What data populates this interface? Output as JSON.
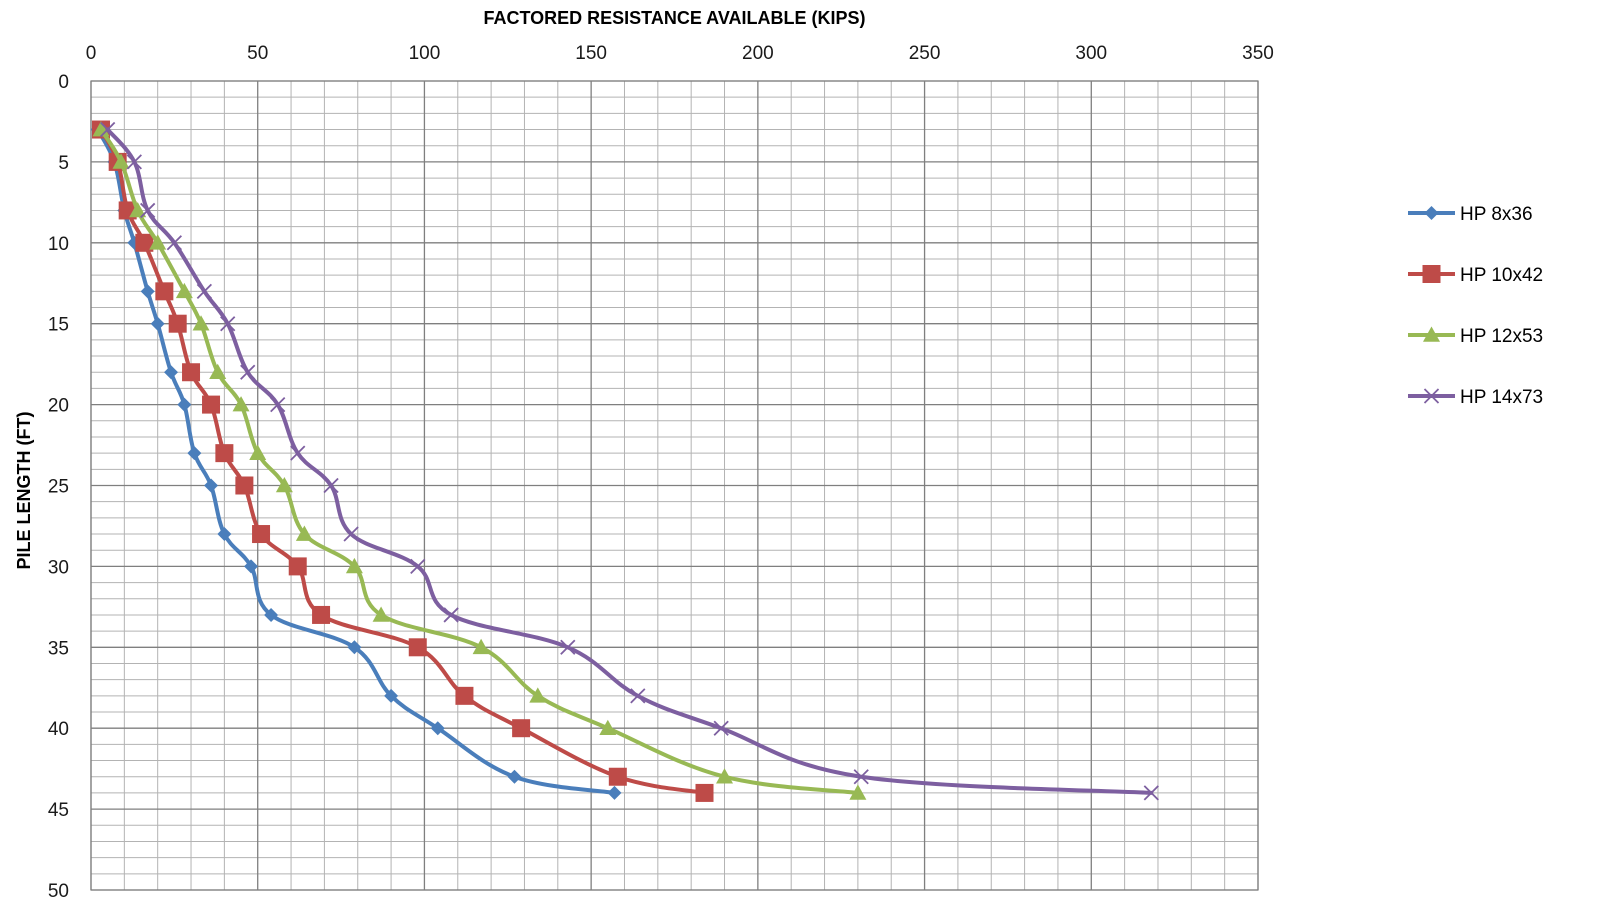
{
  "chart_data": {
    "type": "line",
    "title": "",
    "xlabel": "FACTORED RESISTANCE AVAILABLE (KIPS)",
    "ylabel": "PILE LENGTH (FT)",
    "x_axis_position": "top",
    "y_axis_inverted": true,
    "xlim": [
      0,
      350
    ],
    "ylim": [
      0,
      50
    ],
    "x_major_step": 50,
    "x_minor_step": 10,
    "y_major_step": 5,
    "y_minor_step": 1,
    "x_ticks": [
      "0",
      "50",
      "100",
      "150",
      "200",
      "250",
      "300",
      "350"
    ],
    "y_ticks": [
      "0",
      "5",
      "10",
      "15",
      "20",
      "25",
      "30",
      "35",
      "40",
      "45",
      "50"
    ],
    "grid": "major and minor",
    "legend_position": "right",
    "series": [
      {
        "name": "HP 8x36",
        "color": "#4a7ebb",
        "marker": "diamond",
        "points": [
          [
            2,
            3
          ],
          [
            7,
            5
          ],
          [
            10,
            8
          ],
          [
            13,
            10
          ],
          [
            17,
            13
          ],
          [
            20,
            15
          ],
          [
            24,
            18
          ],
          [
            28,
            20
          ],
          [
            31,
            23
          ],
          [
            36,
            25
          ],
          [
            40,
            28
          ],
          [
            48,
            30
          ],
          [
            54,
            33
          ],
          [
            79,
            35
          ],
          [
            90,
            38
          ],
          [
            104,
            40
          ],
          [
            127,
            43
          ],
          [
            157,
            44
          ]
        ]
      },
      {
        "name": "HP 10x42",
        "color": "#be4b48",
        "marker": "square",
        "points": [
          [
            3,
            3
          ],
          [
            8,
            5
          ],
          [
            11,
            8
          ],
          [
            16,
            10
          ],
          [
            22,
            13
          ],
          [
            26,
            15
          ],
          [
            30,
            18
          ],
          [
            36,
            20
          ],
          [
            40,
            23
          ],
          [
            46,
            25
          ],
          [
            51,
            28
          ],
          [
            62,
            30
          ],
          [
            69,
            33
          ],
          [
            98,
            35
          ],
          [
            112,
            38
          ],
          [
            129,
            40
          ],
          [
            158,
            43
          ],
          [
            184,
            44
          ]
        ]
      },
      {
        "name": "HP 12x53",
        "color": "#98b954",
        "marker": "triangle",
        "points": [
          [
            3,
            3
          ],
          [
            9,
            5
          ],
          [
            14,
            8
          ],
          [
            20,
            10
          ],
          [
            28,
            13
          ],
          [
            33,
            15
          ],
          [
            38,
            18
          ],
          [
            45,
            20
          ],
          [
            50,
            23
          ],
          [
            58,
            25
          ],
          [
            64,
            28
          ],
          [
            79,
            30
          ],
          [
            87,
            33
          ],
          [
            117,
            35
          ],
          [
            134,
            38
          ],
          [
            155,
            40
          ],
          [
            190,
            43
          ],
          [
            230,
            44
          ]
        ]
      },
      {
        "name": "HP 14x73",
        "color": "#7d5fa0",
        "marker": "x",
        "points": [
          [
            5,
            3
          ],
          [
            13,
            5
          ],
          [
            17,
            8
          ],
          [
            25,
            10
          ],
          [
            34,
            13
          ],
          [
            41,
            15
          ],
          [
            47,
            18
          ],
          [
            56,
            20
          ],
          [
            62,
            23
          ],
          [
            72,
            25
          ],
          [
            78,
            28
          ],
          [
            98,
            30
          ],
          [
            108,
            33
          ],
          [
            143,
            35
          ],
          [
            164,
            38
          ],
          [
            189,
            40
          ],
          [
            231,
            43
          ],
          [
            318,
            44
          ]
        ]
      }
    ]
  }
}
